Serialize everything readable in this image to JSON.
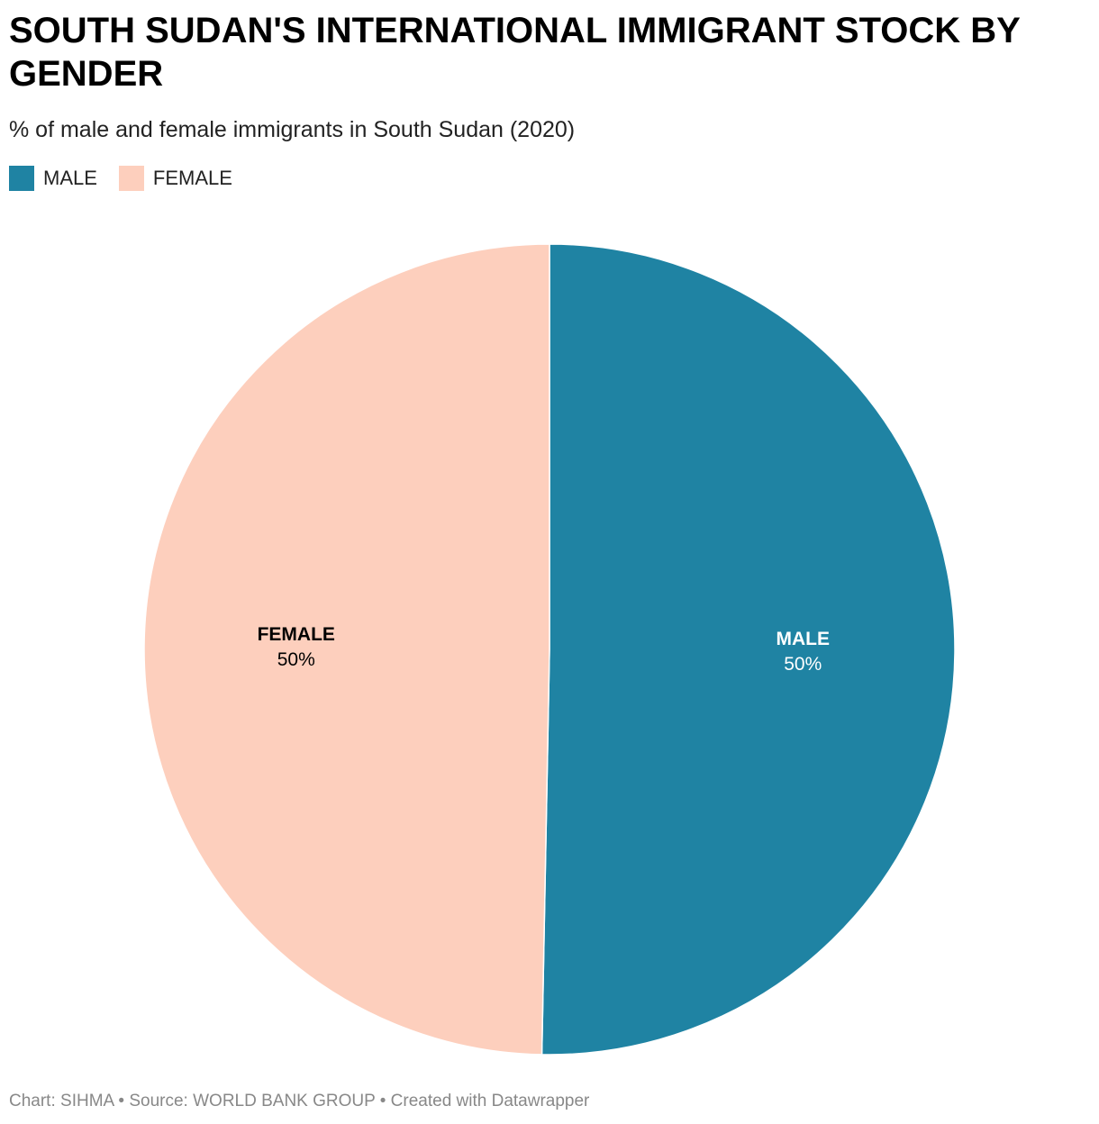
{
  "chart_data": {
    "type": "pie",
    "title": "SOUTH SUDAN'S INTERNATIONAL IMMIGRANT STOCK BY GENDER",
    "subtitle": "% of male and female immigrants in South Sudan (2020)",
    "categories": [
      "MALE",
      "FEMALE"
    ],
    "values": [
      50.3,
      49.7
    ],
    "value_labels": [
      "50%",
      "50%"
    ],
    "colors": [
      "#1f83a3",
      "#fdcfbd"
    ],
    "label_colors": [
      "#ffffff",
      "#000000"
    ],
    "footer": "Chart: SIHMA • Source: WORLD BANK GROUP • Created with Datawrapper"
  }
}
